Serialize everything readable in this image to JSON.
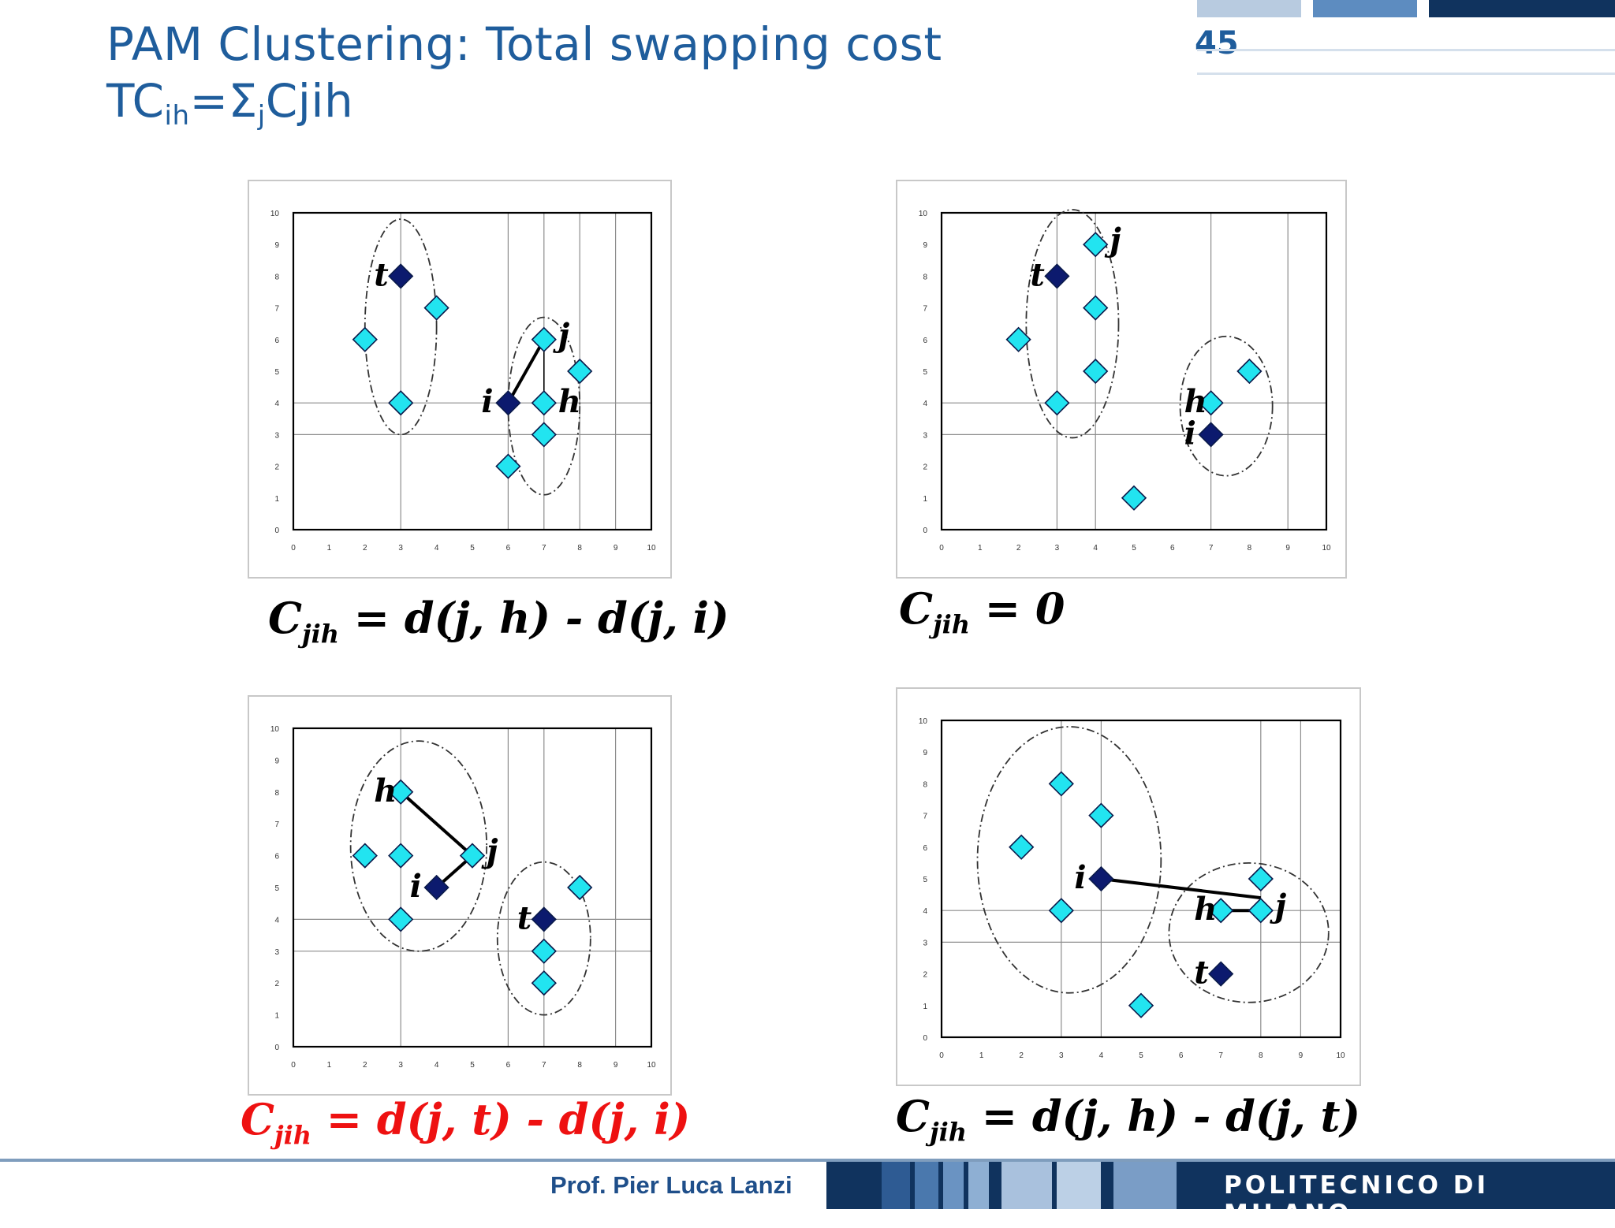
{
  "slide": {
    "title_line1": "PAM Clustering: Total swapping cost",
    "title_line2_prefix": "TC",
    "title_line2_sub1": "ih",
    "title_line2_mid": "=Σ",
    "title_line2_sub2": "j",
    "title_line2_suffix": "Cjih",
    "number": "45"
  },
  "footer": {
    "author": "Prof. Pier Luca Lanzi",
    "institution": "POLITECNICO DI MILANO"
  },
  "captions": [
    {
      "c": "C",
      "sub": "jih",
      "rest": " = d(j, h) - d(j, i)"
    },
    {
      "c": "C",
      "sub": "jih",
      "rest": " = 0"
    },
    {
      "c": "C",
      "sub": "jih",
      "rest": " = d(j, t) - d(j, i)"
    },
    {
      "c": "C",
      "sub": "jih",
      "rest": " = d(j, h) - d(j, t)"
    }
  ],
  "colors": {
    "title": "#1f5d9c",
    "caption_highlight": "#ee1111",
    "non_medoid_point": "#22e4f0",
    "medoid_point": "#0c1a6e",
    "footer_band": "#10335e"
  },
  "chart_data": [
    {
      "type": "scatter",
      "title": "",
      "xlim": [
        0,
        10
      ],
      "ylim": [
        0,
        10
      ],
      "x_ticks": [
        "0",
        "1",
        "2",
        "3",
        "4",
        "5",
        "6",
        "7",
        "8",
        "9",
        "10"
      ],
      "y_ticks": [
        "0",
        "1",
        "2",
        "3",
        "4",
        "5",
        "6",
        "7",
        "8",
        "9",
        "10"
      ],
      "vgrid": [
        3,
        6,
        7,
        8,
        9
      ],
      "hgrid": [
        3,
        4
      ],
      "series": [
        {
          "name": "objects",
          "points": [
            [
              2,
              6
            ],
            [
              3,
              4
            ],
            [
              4,
              7
            ],
            [
              7,
              6
            ],
            [
              8,
              5
            ],
            [
              7,
              4
            ],
            [
              7,
              3
            ],
            [
              6,
              2
            ]
          ]
        },
        {
          "name": "medoids",
          "points": [
            [
              3,
              8
            ],
            [
              6,
              4
            ]
          ]
        }
      ],
      "labels": [
        {
          "text": "t",
          "x": 3,
          "y": 8
        },
        {
          "text": "j",
          "x": 7,
          "y": 6
        },
        {
          "text": "i",
          "x": 6,
          "y": 4
        },
        {
          "text": "h",
          "x": 7,
          "y": 4
        }
      ],
      "lines": [
        {
          "from": [
            6,
            4
          ],
          "to": [
            7,
            6
          ],
          "bold": true
        },
        {
          "from": [
            7,
            6
          ],
          "to": [
            7,
            4
          ],
          "bold": false
        }
      ],
      "clusters": [
        {
          "cx": 3,
          "cy": 6.4,
          "rx": 1.0,
          "ry": 3.4
        },
        {
          "cx": 7,
          "cy": 3.9,
          "rx": 1.0,
          "ry": 2.8
        }
      ]
    },
    {
      "type": "scatter",
      "title": "",
      "xlim": [
        0,
        10
      ],
      "ylim": [
        0,
        10
      ],
      "x_ticks": [
        "0",
        "1",
        "2",
        "3",
        "4",
        "5",
        "6",
        "7",
        "8",
        "9",
        "10"
      ],
      "y_ticks": [
        "0",
        "1",
        "2",
        "3",
        "4",
        "5",
        "6",
        "7",
        "8",
        "9",
        "10"
      ],
      "vgrid": [
        3,
        4,
        7,
        9
      ],
      "hgrid": [
        3,
        4
      ],
      "series": [
        {
          "name": "objects",
          "points": [
            [
              2,
              6
            ],
            [
              3,
              4
            ],
            [
              4,
              9
            ],
            [
              4,
              7
            ],
            [
              4,
              5
            ],
            [
              7,
              4
            ],
            [
              8,
              5
            ],
            [
              5,
              1
            ]
          ]
        },
        {
          "name": "medoids",
          "points": [
            [
              3,
              8
            ],
            [
              7,
              3
            ]
          ]
        }
      ],
      "labels": [
        {
          "text": "t",
          "x": 3,
          "y": 8
        },
        {
          "text": "j",
          "x": 4,
          "y": 9
        },
        {
          "text": "h",
          "x": 7,
          "y": 4
        },
        {
          "text": "i",
          "x": 7,
          "y": 3
        }
      ],
      "lines": [],
      "clusters": [
        {
          "cx": 3.4,
          "cy": 6.5,
          "rx": 1.2,
          "ry": 3.6
        },
        {
          "cx": 7.4,
          "cy": 3.9,
          "rx": 1.2,
          "ry": 2.2
        }
      ]
    },
    {
      "type": "scatter",
      "title": "",
      "xlim": [
        0,
        10
      ],
      "ylim": [
        0,
        10
      ],
      "x_ticks": [
        "0",
        "1",
        "2",
        "3",
        "4",
        "5",
        "6",
        "7",
        "8",
        "9",
        "10"
      ],
      "y_ticks": [
        "0",
        "1",
        "2",
        "3",
        "4",
        "5",
        "6",
        "7",
        "8",
        "9",
        "10"
      ],
      "vgrid": [
        3,
        6,
        7,
        9
      ],
      "hgrid": [
        3,
        4
      ],
      "series": [
        {
          "name": "objects",
          "points": [
            [
              3,
              8
            ],
            [
              2,
              6
            ],
            [
              3,
              6
            ],
            [
              5,
              6
            ],
            [
              3,
              4
            ],
            [
              8,
              5
            ],
            [
              7,
              3
            ],
            [
              7,
              2
            ]
          ]
        },
        {
          "name": "medoids",
          "points": [
            [
              4,
              5
            ],
            [
              7,
              4
            ]
          ]
        }
      ],
      "labels": [
        {
          "text": "h",
          "x": 3,
          "y": 8
        },
        {
          "text": "j",
          "x": 5,
          "y": 6
        },
        {
          "text": "i",
          "x": 4,
          "y": 5
        },
        {
          "text": "t",
          "x": 7,
          "y": 4
        }
      ],
      "lines": [
        {
          "from": [
            3,
            8
          ],
          "to": [
            5,
            6
          ],
          "bold": true
        },
        {
          "from": [
            4,
            5
          ],
          "to": [
            5,
            6
          ],
          "bold": true
        }
      ],
      "clusters": [
        {
          "cx": 3.5,
          "cy": 6.3,
          "rx": 1.9,
          "ry": 3.3
        },
        {
          "cx": 7,
          "cy": 3.4,
          "rx": 1.3,
          "ry": 2.4
        }
      ]
    },
    {
      "type": "scatter",
      "title": "",
      "xlim": [
        0,
        10
      ],
      "ylim": [
        0,
        10
      ],
      "x_ticks": [
        "0",
        "1",
        "2",
        "3",
        "4",
        "5",
        "6",
        "7",
        "8",
        "9",
        "10"
      ],
      "y_ticks": [
        "0",
        "1",
        "2",
        "3",
        "4",
        "5",
        "6",
        "7",
        "8",
        "9",
        "10"
      ],
      "vgrid": [
        3,
        4,
        8,
        9
      ],
      "hgrid": [
        3,
        4
      ],
      "series": [
        {
          "name": "objects",
          "points": [
            [
              3,
              8
            ],
            [
              4,
              7
            ],
            [
              2,
              6
            ],
            [
              3,
              4
            ],
            [
              8,
              5
            ],
            [
              7,
              4
            ],
            [
              8,
              4
            ],
            [
              5,
              1
            ]
          ]
        },
        {
          "name": "medoids",
          "points": [
            [
              4,
              5
            ],
            [
              7,
              2
            ]
          ]
        }
      ],
      "labels": [
        {
          "text": "i",
          "x": 4,
          "y": 5
        },
        {
          "text": "h",
          "x": 7,
          "y": 4
        },
        {
          "text": "j",
          "x": 8,
          "y": 4
        },
        {
          "text": "t",
          "x": 7,
          "y": 2
        }
      ],
      "lines": [
        {
          "from": [
            4,
            5
          ],
          "to": [
            8,
            4.4
          ],
          "bold": true
        },
        {
          "from": [
            7,
            4
          ],
          "to": [
            8,
            4
          ],
          "bold": true
        }
      ],
      "clusters": [
        {
          "cx": 3.2,
          "cy": 5.6,
          "rx": 2.3,
          "ry": 4.2
        },
        {
          "cx": 7.7,
          "cy": 3.3,
          "rx": 2.0,
          "ry": 2.2
        }
      ]
    }
  ]
}
